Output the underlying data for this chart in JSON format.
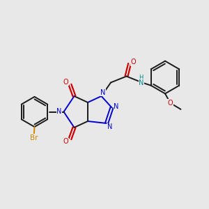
{
  "background_color": "#e8e8e8",
  "bond_color": "#1a1a1a",
  "N_color": "#0000cc",
  "O_color": "#cc0000",
  "Br_color": "#cc8800",
  "NH_color": "#008888",
  "figsize": [
    3.0,
    3.0
  ],
  "dpi": 100,
  "xlim": [
    0,
    10
  ],
  "ylim": [
    0,
    10
  ]
}
